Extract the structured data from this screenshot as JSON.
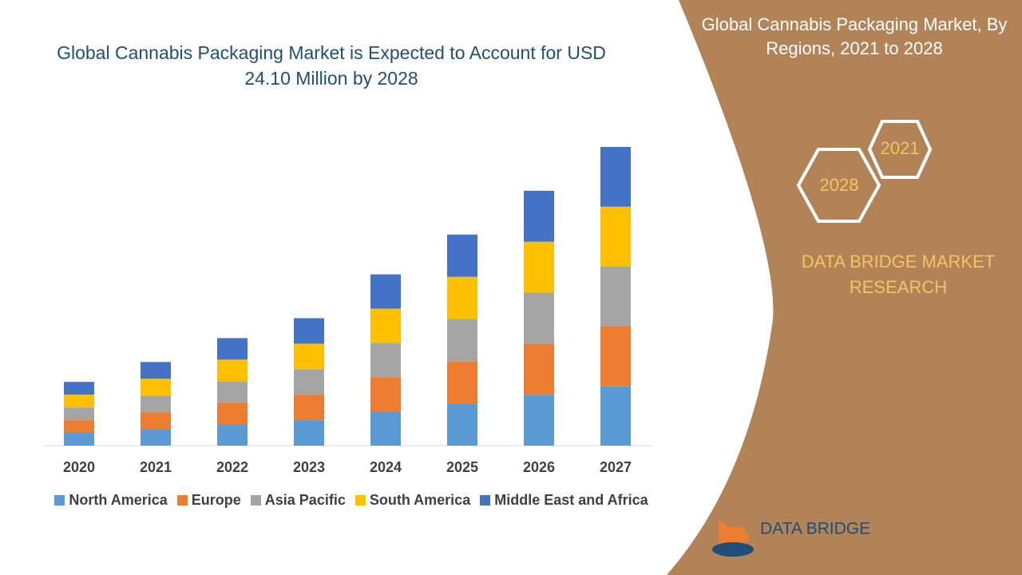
{
  "chart_data": {
    "type": "bar",
    "stacked": true,
    "title": "Global Cannabis Packaging Market is Expected to Account for USD 24.10 Million by 2028",
    "categories": [
      "2020",
      "2021",
      "2022",
      "2023",
      "2024",
      "2025",
      "2026",
      "2027"
    ],
    "series": [
      {
        "name": "North America",
        "color": "#5b9bd5",
        "values": [
          1.6,
          2.1,
          2.7,
          3.2,
          4.3,
          5.3,
          6.4,
          7.5
        ]
      },
      {
        "name": "Europe",
        "color": "#ed7d31",
        "values": [
          1.6,
          2.1,
          2.7,
          3.2,
          4.3,
          5.3,
          6.4,
          7.5
        ]
      },
      {
        "name": "Asia Pacific",
        "color": "#a5a5a5",
        "values": [
          1.6,
          2.1,
          2.7,
          3.2,
          4.3,
          5.3,
          6.4,
          7.5
        ]
      },
      {
        "name": "South America",
        "color": "#ffc000",
        "values": [
          1.6,
          2.1,
          2.7,
          3.2,
          4.3,
          5.3,
          6.4,
          7.5
        ]
      },
      {
        "name": "Middle East and Africa",
        "color": "#4472c4",
        "values": [
          1.6,
          2.1,
          2.7,
          3.2,
          4.3,
          5.3,
          6.4,
          7.5
        ]
      }
    ]
  },
  "sidebar": {
    "title": "Global Cannabis Packaging Market, By Regions, 2021 to 2028",
    "hex_start": "2021",
    "hex_end": "2028",
    "brand": "DATA BRIDGE MARKET RESEARCH",
    "logo": "DATA BRIDGE"
  }
}
